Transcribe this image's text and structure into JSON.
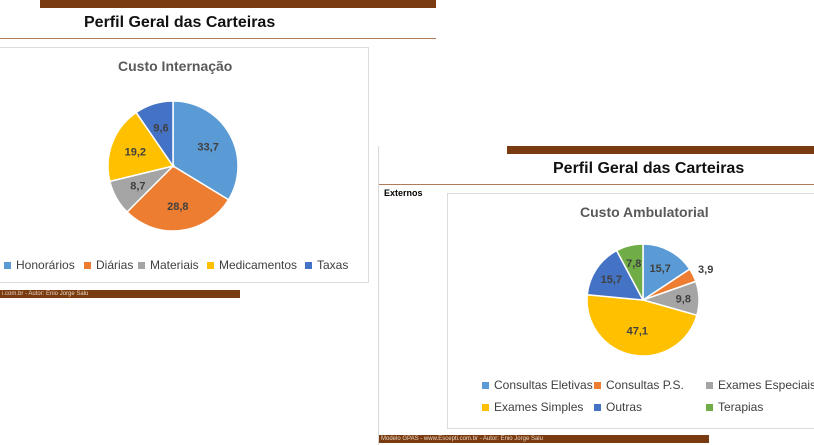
{
  "slides": {
    "left": {
      "title": "Perfil Geral das Carteiras",
      "footer": "i.com.br   -   Autor: Enio Jorge Salu"
    },
    "right": {
      "title": "Perfil Geral das Carteiras",
      "subtitle": "Externos",
      "footer": "Modelo GPAS   -   www.Escepti.com.br   -   Autor: Enio Jorge Salu"
    }
  },
  "colors": {
    "brand_bar": "#7a3b10"
  },
  "chart_data": [
    {
      "type": "pie",
      "title": "Custo Internação",
      "labels": [
        "Honorários",
        "Diárias",
        "Materiais",
        "Medicamentos",
        "Taxas"
      ],
      "values": [
        33.7,
        28.8,
        8.7,
        19.2,
        9.6
      ],
      "data_labels": [
        "33,7",
        "28,8",
        "8,7",
        "19,2",
        "9,6"
      ],
      "colors": [
        "#5b9bd5",
        "#ed7d31",
        "#a5a5a5",
        "#ffc000",
        "#4472c4"
      ],
      "legend_position": "bottom"
    },
    {
      "type": "pie",
      "title": "Custo Ambulatorial",
      "labels": [
        "Consultas Eletivas",
        "Consultas P.S.",
        "Exames Especiais",
        "Exames Simples",
        "Outras",
        "Terapias"
      ],
      "values": [
        15.7,
        3.9,
        9.8,
        47.1,
        15.7,
        7.8
      ],
      "data_labels": [
        "15,7",
        "3,9",
        "9,8",
        "47,1",
        "15,7",
        "7,8"
      ],
      "colors": [
        "#5b9bd5",
        "#ed7d31",
        "#a5a5a5",
        "#ffc000",
        "#4472c4",
        "#70ad47"
      ],
      "legend_position": "bottom"
    }
  ]
}
